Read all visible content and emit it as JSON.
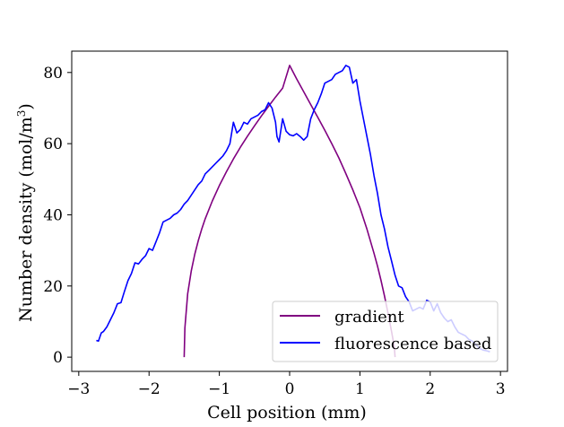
{
  "chart_data": {
    "type": "line",
    "title": "",
    "xlabel": "Cell position (mm)",
    "ylabel_main": "Number density (mol/m",
    "ylabel_sup": "3",
    "ylabel_tail": ")",
    "xlim": [
      -3.1,
      3.1
    ],
    "ylim": [
      -4,
      86
    ],
    "xticks": [
      -3,
      -2,
      -1,
      0,
      1,
      2,
      3
    ],
    "xtick_labels": [
      "−3",
      "−2",
      "−1",
      "0",
      "1",
      "2",
      "3"
    ],
    "yticks": [
      0,
      20,
      40,
      60,
      80
    ],
    "ytick_labels": [
      "0",
      "20",
      "40",
      "60",
      "80"
    ],
    "grid": false,
    "legend_position": "lower-right",
    "series": [
      {
        "name": "gradient",
        "color": "#800080",
        "x": [
          -1.5,
          -1.49,
          -1.45,
          -1.4,
          -1.35,
          -1.3,
          -1.25,
          -1.2,
          -1.1,
          -1.0,
          -0.9,
          -0.8,
          -0.7,
          -0.6,
          -0.5,
          -0.4,
          -0.3,
          -0.2,
          -0.1,
          0.0,
          0.1,
          0.2,
          0.3,
          0.4,
          0.5,
          0.6,
          0.7,
          0.8,
          0.9,
          1.0,
          1.1,
          1.2,
          1.25,
          1.3,
          1.35,
          1.4,
          1.45,
          1.49,
          1.5
        ],
        "y": [
          0.0,
          8.2,
          17.8,
          24.2,
          28.9,
          32.7,
          36.0,
          38.9,
          43.9,
          48.2,
          52.1,
          55.7,
          59.0,
          62.1,
          65.0,
          67.8,
          70.5,
          73.1,
          75.6,
          82.0,
          78.2,
          74.6,
          71.0,
          67.4,
          63.8,
          60.0,
          56.0,
          51.6,
          47.0,
          42.0,
          36.0,
          29.2,
          25.6,
          21.6,
          17.2,
          12.4,
          7.2,
          2.8,
          0.0
        ]
      },
      {
        "name": "fluorescence based",
        "color": "#0000ff",
        "x": [
          -2.75,
          -2.72,
          -2.68,
          -2.65,
          -2.6,
          -2.55,
          -2.5,
          -2.45,
          -2.4,
          -2.35,
          -2.3,
          -2.25,
          -2.2,
          -2.15,
          -2.1,
          -2.05,
          -2.0,
          -1.95,
          -1.9,
          -1.85,
          -1.8,
          -1.75,
          -1.7,
          -1.65,
          -1.6,
          -1.55,
          -1.5,
          -1.45,
          -1.4,
          -1.35,
          -1.3,
          -1.25,
          -1.2,
          -1.15,
          -1.1,
          -1.05,
          -1.0,
          -0.95,
          -0.9,
          -0.85,
          -0.8,
          -0.75,
          -0.7,
          -0.65,
          -0.6,
          -0.55,
          -0.5,
          -0.45,
          -0.4,
          -0.35,
          -0.3,
          -0.25,
          -0.2,
          -0.18,
          -0.15,
          -0.1,
          -0.05,
          0.0,
          0.05,
          0.1,
          0.15,
          0.2,
          0.25,
          0.3,
          0.35,
          0.4,
          0.45,
          0.5,
          0.55,
          0.6,
          0.65,
          0.7,
          0.75,
          0.8,
          0.85,
          0.9,
          0.95,
          1.0,
          1.05,
          1.1,
          1.15,
          1.2,
          1.25,
          1.3,
          1.35,
          1.4,
          1.45,
          1.5,
          1.55,
          1.6,
          1.65,
          1.7,
          1.75,
          1.8,
          1.85,
          1.9,
          1.95,
          2.0,
          2.05,
          2.1,
          2.15,
          2.2,
          2.25,
          2.3,
          2.35,
          2.4,
          2.45,
          2.5,
          2.55,
          2.6,
          2.65,
          2.7,
          2.75,
          2.8,
          2.85
        ],
        "y": [
          4.7,
          4.5,
          6.8,
          7.2,
          8.5,
          10.5,
          12.5,
          15.0,
          15.3,
          18.5,
          21.5,
          23.5,
          26.5,
          26.2,
          27.5,
          28.5,
          30.5,
          30.0,
          32.5,
          35.0,
          38.0,
          38.5,
          39.0,
          40.0,
          40.5,
          41.5,
          43.0,
          44.0,
          45.5,
          47.0,
          48.5,
          49.5,
          51.5,
          52.5,
          53.5,
          54.5,
          55.5,
          56.5,
          58.0,
          60.0,
          66.0,
          63.0,
          64.0,
          66.0,
          65.5,
          67.0,
          67.5,
          68.0,
          69.0,
          69.5,
          71.5,
          70.0,
          66.0,
          62.0,
          60.5,
          67.0,
          63.5,
          62.5,
          62.2,
          62.8,
          62.0,
          61.0,
          62.0,
          67.0,
          69.5,
          71.5,
          74.0,
          77.0,
          77.5,
          78.0,
          79.5,
          80.0,
          80.5,
          82.0,
          81.5,
          77.0,
          78.0,
          72.0,
          67.0,
          62.0,
          57.0,
          51.0,
          46.0,
          40.0,
          36.0,
          31.0,
          27.0,
          23.0,
          20.0,
          19.5,
          17.0,
          15.5,
          13.0,
          13.5,
          14.0,
          13.5,
          16.0,
          15.5,
          13.0,
          15.0,
          12.5,
          11.0,
          10.0,
          10.5,
          8.5,
          7.0,
          6.5,
          6.0,
          5.0,
          4.5,
          3.5,
          2.5,
          2.0,
          1.8,
          1.5
        ]
      }
    ]
  }
}
